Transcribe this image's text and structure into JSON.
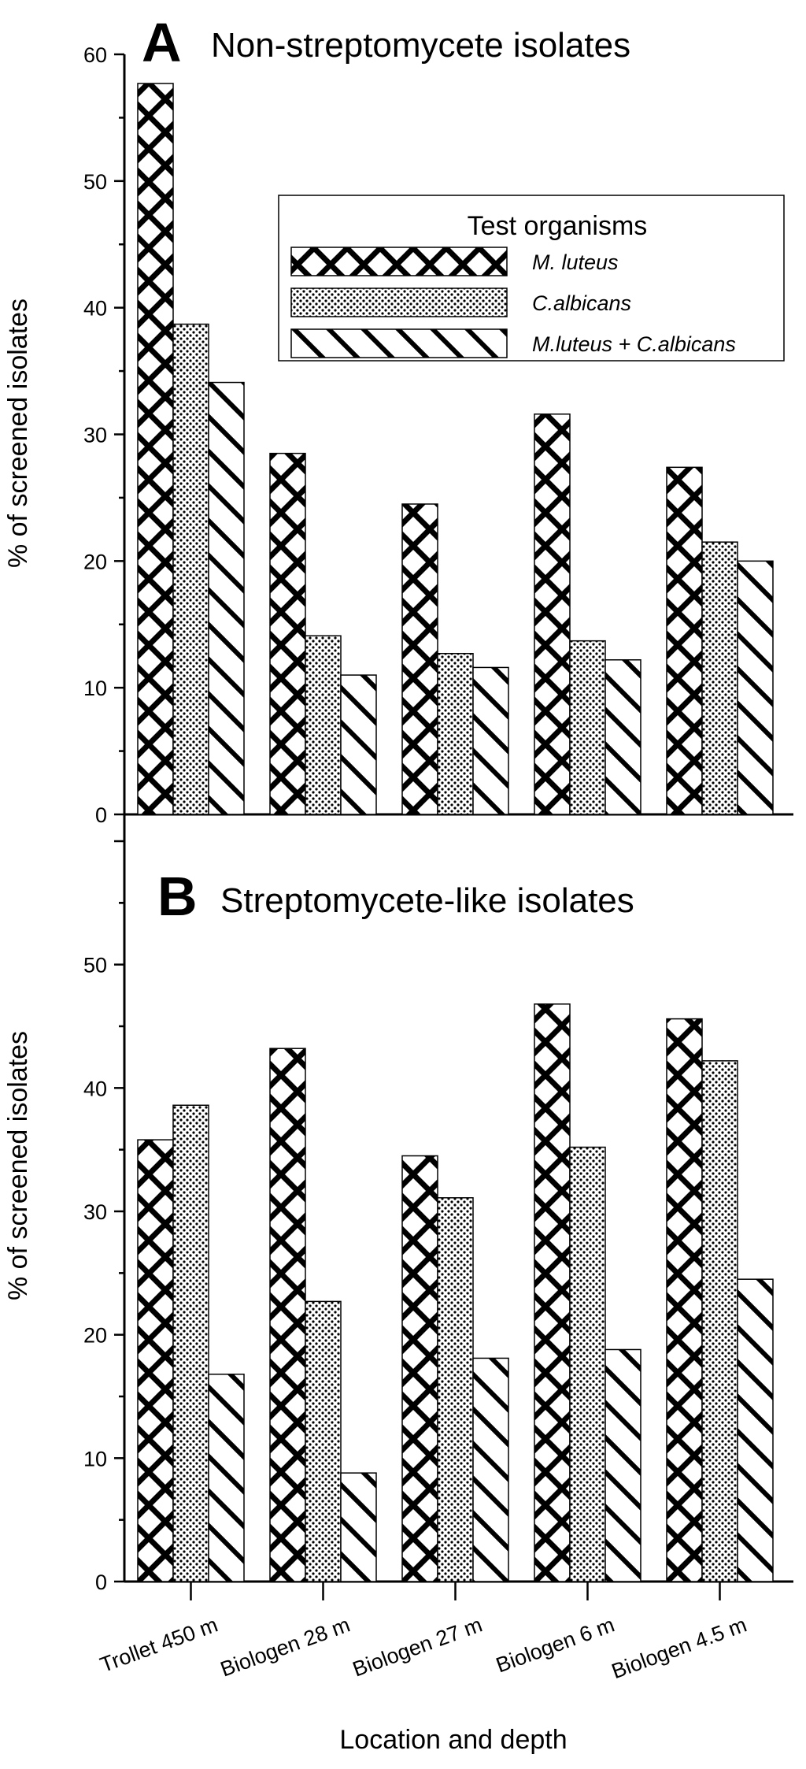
{
  "chart_data": [
    {
      "panel": "A",
      "title": "Non-streptomycete isolates",
      "type": "bar",
      "ylabel": "% of screened isolates",
      "xlabel": "Location and depth",
      "ylim": [
        0,
        60
      ],
      "yticks": [
        "0",
        "10",
        "20",
        "30",
        "40",
        "50",
        "60"
      ],
      "categories": [
        "Trollet 450 m",
        "Biologen 28 m",
        "Biologen 27 m",
        "Biologen 6 m",
        "Biologen 4.5 m"
      ],
      "series": [
        {
          "name": "M. luteus",
          "pattern": "crosshatch",
          "values": [
            57.7,
            28.5,
            24.5,
            31.6,
            27.4
          ]
        },
        {
          "name": "C.albicans",
          "pattern": "dots",
          "values": [
            38.7,
            14.1,
            12.7,
            13.7,
            21.5
          ]
        },
        {
          "name": "M.luteus + C.albicans",
          "pattern": "diagonal",
          "values": [
            34.1,
            11.0,
            11.6,
            12.2,
            20.0
          ]
        }
      ],
      "legend": {
        "title": "Test organisms",
        "placement": "top-right"
      }
    },
    {
      "panel": "B",
      "title": "Streptomycete-like isolates",
      "type": "bar",
      "ylabel": "% of screened isolates",
      "xlabel": "Location and depth",
      "ylim": [
        0,
        60
      ],
      "yticks": [
        "0",
        "10",
        "20",
        "30",
        "40",
        "50"
      ],
      "categories": [
        "Trollet 450 m",
        "Biologen 28 m",
        "Biologen 27 m",
        "Biologen 6 m",
        "Biologen 4.5 m"
      ],
      "series": [
        {
          "name": "M. luteus",
          "pattern": "crosshatch",
          "values": [
            35.8,
            43.2,
            34.5,
            46.8,
            45.6
          ]
        },
        {
          "name": "C.albicans",
          "pattern": "dots",
          "values": [
            38.6,
            22.7,
            31.1,
            35.2,
            42.2
          ]
        },
        {
          "name": "M.luteus + C.albicans",
          "pattern": "diagonal",
          "values": [
            16.8,
            8.8,
            18.1,
            18.8,
            24.5
          ]
        }
      ]
    }
  ]
}
